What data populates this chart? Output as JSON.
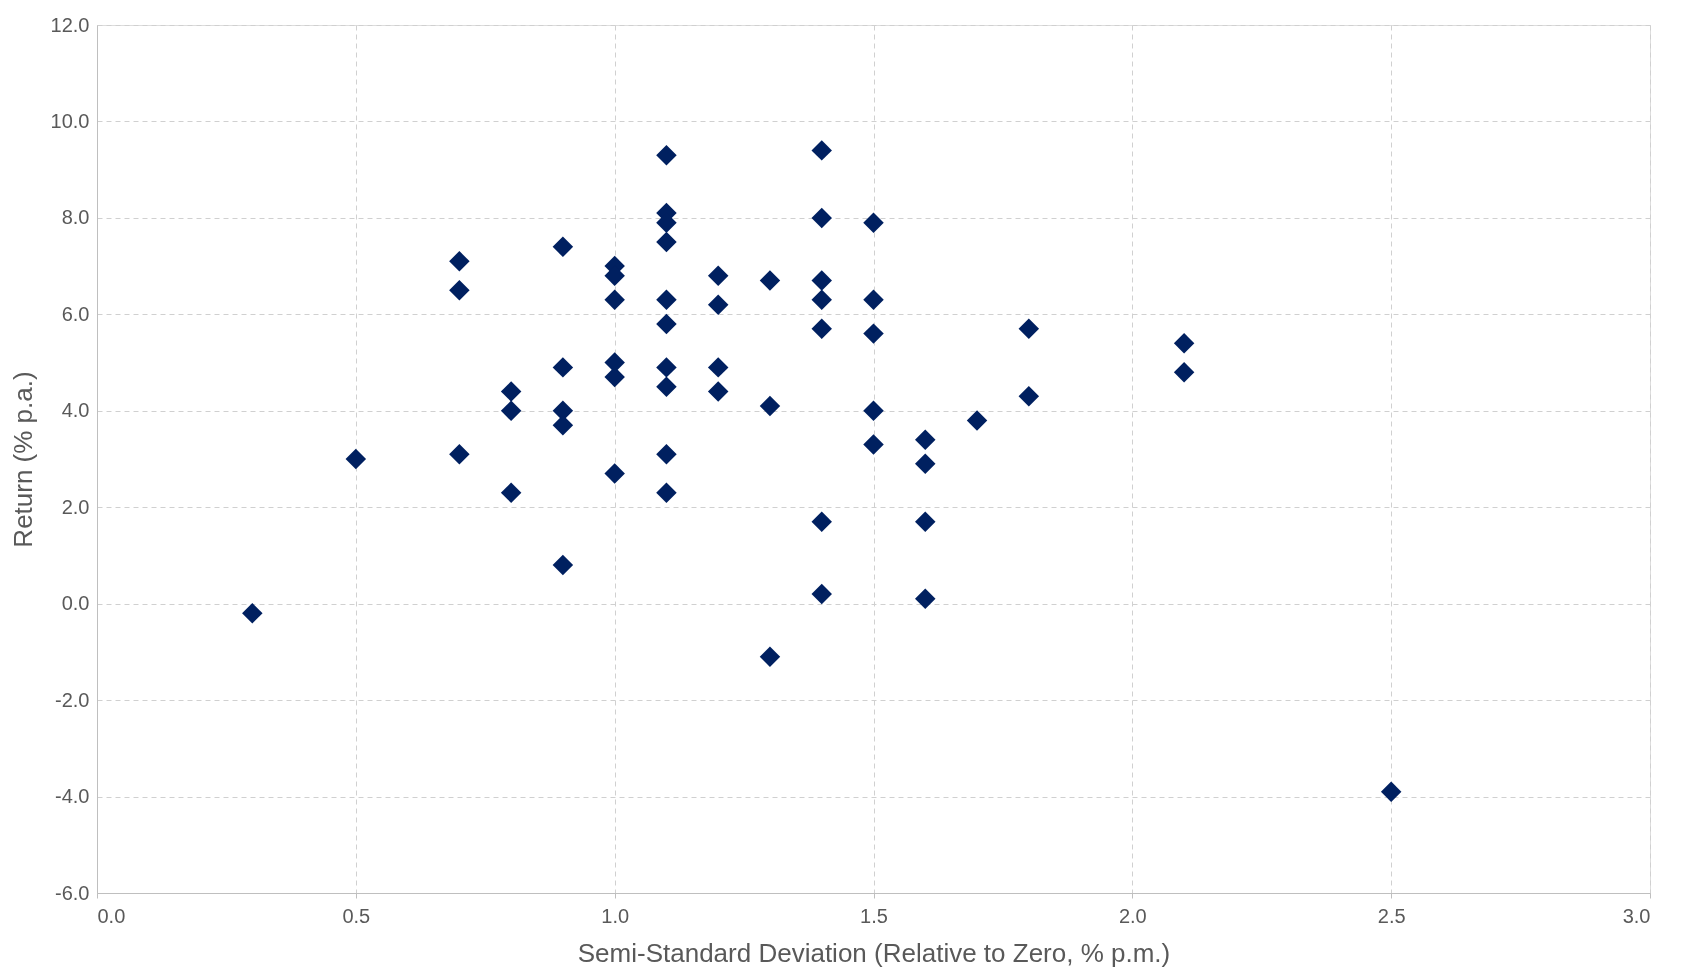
{
  "chart_data": {
    "type": "scatter",
    "xlabel": "Semi-Standard Deviation (Relative to Zero, % p.m.)",
    "ylabel": "Return (% p.a.)",
    "x": [
      0.3,
      0.5,
      0.7,
      0.7,
      0.7,
      0.8,
      0.8,
      0.8,
      0.9,
      0.9,
      0.9,
      0.9,
      0.9,
      1.0,
      1.0,
      1.0,
      1.0,
      1.0,
      1.0,
      1.1,
      1.1,
      1.1,
      1.1,
      1.1,
      1.1,
      1.1,
      1.1,
      1.1,
      1.1,
      1.2,
      1.2,
      1.2,
      1.2,
      1.3,
      1.3,
      1.3,
      1.4,
      1.4,
      1.4,
      1.4,
      1.4,
      1.4,
      1.4,
      1.5,
      1.5,
      1.5,
      1.5,
      1.5,
      1.6,
      1.6,
      1.6,
      1.6,
      1.7,
      1.8,
      1.8,
      2.1,
      2.1,
      2.5
    ],
    "series": [
      {
        "color": "#002060",
        "values": [
          -0.2,
          3.0,
          7.1,
          6.5,
          3.1,
          4.4,
          4.0,
          2.3,
          7.4,
          4.9,
          4.0,
          3.7,
          0.8,
          7.0,
          6.8,
          6.3,
          5.0,
          4.7,
          2.7,
          9.3,
          8.1,
          7.9,
          7.5,
          6.3,
          5.8,
          4.9,
          4.5,
          3.1,
          2.3,
          6.8,
          6.2,
          4.9,
          4.4,
          6.7,
          4.1,
          -1.1,
          9.4,
          8.0,
          6.7,
          6.3,
          5.7,
          1.7,
          0.2,
          7.9,
          6.3,
          5.6,
          4.0,
          3.3,
          3.4,
          2.9,
          1.7,
          0.1,
          3.8,
          5.7,
          4.3,
          5.4,
          4.8,
          -3.9
        ]
      }
    ],
    "xlim": [
      0,
      3
    ],
    "xticks": [
      {
        "value": 0,
        "label": "0.0"
      },
      0.5,
      {
        "value": 1,
        "label": "1.0"
      },
      1.5,
      {
        "value": 2,
        "label": "2.0"
      },
      2.5,
      {
        "value": 3,
        "label": "3.0"
      }
    ],
    "ylim": [
      -6,
      12
    ],
    "yticks": [
      {
        "value": -6,
        "label": "-6.0"
      },
      {
        "value": -4,
        "label": "-4.0"
      },
      {
        "value": -2,
        "label": "-2.0"
      },
      {
        "value": 0,
        "label": "0.0"
      },
      {
        "value": 2,
        "label": "2.0"
      },
      {
        "value": 4,
        "label": "4.0"
      },
      {
        "value": 6,
        "label": "6.0"
      },
      {
        "value": 8,
        "label": "8.0"
      },
      {
        "value": 10,
        "label": "10.0"
      },
      {
        "value": 12,
        "label": "12.0"
      }
    ],
    "grid": true,
    "marker": "diamond"
  }
}
